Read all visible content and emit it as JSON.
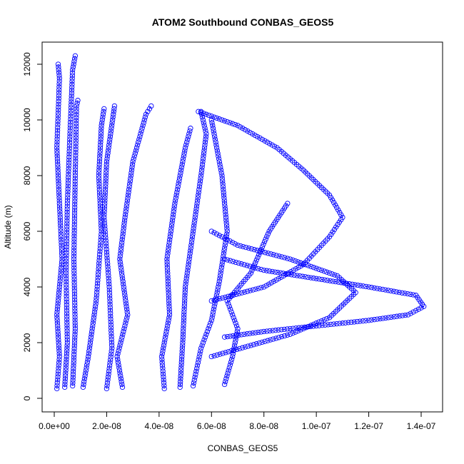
{
  "chart_data": {
    "type": "scatter",
    "title": "ATOM2 Southbound CONBAS_GEOS5",
    "xlabel": "CONBAS_GEOS5",
    "ylabel": "Altitude (m)",
    "xlim": [
      0,
      1.42e-07
    ],
    "ylim": [
      300,
      12300
    ],
    "x_ticks": [
      0,
      2e-08,
      4e-08,
      6e-08,
      8e-08,
      1e-07,
      1.2e-07,
      1.4e-07
    ],
    "x_tick_labels": [
      "0.0e+00",
      "2.0e-08",
      "4.0e-08",
      "6.0e-08",
      "8.0e-08",
      "1.0e-07",
      "1.2e-07",
      "1.4e-07"
    ],
    "y_ticks": [
      0,
      2000,
      4000,
      6000,
      8000,
      10000,
      12000
    ],
    "y_tick_labels": [
      "0",
      "2000",
      "4000",
      "6000",
      "8000",
      "10000",
      "12000"
    ],
    "marker": "open-circle",
    "line_style": "dashed-with-markers",
    "color": "#0000ff",
    "grid": false,
    "series": [
      {
        "x": [
          1e-09,
          2e-09,
          1e-09,
          3e-09,
          2e-09,
          1e-09,
          2e-09,
          1.5e-09
        ],
        "y": [
          350,
          1500,
          3000,
          5000,
          7000,
          9000,
          11500,
          12000
        ]
      },
      {
        "x": [
          4e-09,
          5e-09,
          4.5e-09,
          5e-09,
          6e-09,
          7e-09,
          8e-09
        ],
        "y": [
          400,
          2000,
          4500,
          7000,
          9500,
          11800,
          12300
        ]
      },
      {
        "x": [
          7e-09,
          8e-09,
          7.5e-09,
          8e-09,
          8.5e-09,
          9e-09
        ],
        "y": [
          450,
          2500,
          5000,
          8000,
          10500,
          10700
        ]
      },
      {
        "x": [
          1.1e-08,
          1.3e-08,
          1.6e-08,
          1.8e-08,
          1.7e-08,
          1.8e-08,
          1.9e-08
        ],
        "y": [
          400,
          1500,
          3500,
          6000,
          8000,
          9800,
          10400
        ]
      },
      {
        "x": [
          2e-08,
          2.2e-08,
          2.1e-08,
          1.9e-08,
          2e-08,
          2.3e-08
        ],
        "y": [
          350,
          1800,
          4000,
          6500,
          8500,
          10500
        ]
      },
      {
        "x": [
          2.6e-08,
          2.4e-08,
          2.8e-08,
          2.5e-08,
          2.7e-08,
          3e-08,
          3.5e-08,
          3.7e-08
        ],
        "y": [
          400,
          1500,
          3000,
          5000,
          6500,
          8500,
          10200,
          10500
        ]
      },
      {
        "x": [
          4.2e-08,
          4.1e-08,
          4.4e-08,
          4.3e-08,
          4.6e-08,
          5e-08,
          5.2e-08
        ],
        "y": [
          350,
          1500,
          3000,
          5000,
          7000,
          9000,
          9700
        ]
      },
      {
        "x": [
          4.8e-08,
          4.9e-08,
          5e-08,
          5.3e-08,
          5.6e-08,
          5.8e-08,
          5.6e-08
        ],
        "y": [
          400,
          2000,
          4000,
          6000,
          8000,
          9500,
          10300
        ]
      },
      {
        "x": [
          5.3e-08,
          5.6e-08,
          6e-08,
          6.3e-08,
          6.6e-08,
          6.4e-08,
          6e-08
        ],
        "y": [
          450,
          1800,
          2800,
          4200,
          6000,
          8000,
          10000
        ]
      },
      {
        "x": [
          6.5e-08,
          6.8e-08,
          7e-08,
          6.6e-08,
          7.5e-08,
          8.2e-08,
          8.9e-08
        ],
        "y": [
          500,
          1500,
          2500,
          3500,
          4500,
          6000,
          7000
        ]
      },
      {
        "x": [
          5.5e-08,
          7e-08,
          8.5e-08,
          9.5e-08,
          1.05e-07,
          1.1e-07,
          1.05e-07,
          9.5e-08,
          8e-08,
          6e-08
        ],
        "y": [
          10300,
          9800,
          9000,
          8200,
          7300,
          6500,
          5800,
          4800,
          4000,
          3500
        ]
      },
      {
        "x": [
          6.5e-08,
          8e-08,
          1e-07,
          1.2e-07,
          1.35e-07,
          1.41e-07,
          1.38e-07,
          1.2e-07,
          1e-07,
          8e-08,
          6.5e-08
        ],
        "y": [
          2200,
          2400,
          2600,
          2800,
          3000,
          3300,
          3700,
          4000,
          4300,
          4600,
          5000
        ]
      },
      {
        "x": [
          6e-08,
          7.5e-08,
          9e-08,
          1.05e-07,
          1.15e-07,
          1.08e-07,
          9e-08,
          7e-08,
          6e-08
        ],
        "y": [
          1500,
          1900,
          2300,
          2900,
          3800,
          4400,
          5000,
          5500,
          6000
        ]
      }
    ]
  }
}
